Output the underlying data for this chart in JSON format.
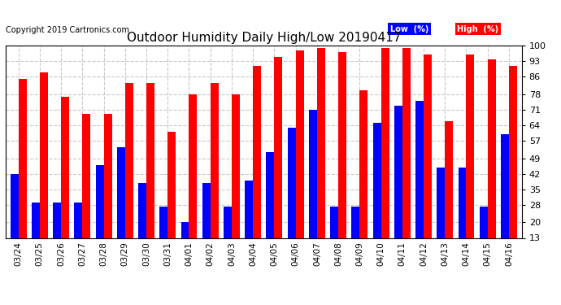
{
  "title": "Outdoor Humidity Daily High/Low 20190417",
  "copyright": "Copyright 2019 Cartronics.com",
  "categories": [
    "03/24",
    "03/25",
    "03/26",
    "03/27",
    "03/28",
    "03/29",
    "03/30",
    "03/31",
    "04/01",
    "04/02",
    "04/03",
    "04/04",
    "04/05",
    "04/06",
    "04/07",
    "04/08",
    "04/09",
    "04/10",
    "04/11",
    "04/12",
    "04/13",
    "04/14",
    "04/15",
    "04/16"
  ],
  "high": [
    85,
    88,
    77,
    69,
    69,
    83,
    83,
    61,
    78,
    83,
    78,
    91,
    95,
    98,
    99,
    97,
    80,
    99,
    99,
    96,
    66,
    96,
    94,
    91
  ],
  "low": [
    42,
    29,
    29,
    29,
    46,
    54,
    38,
    27,
    20,
    38,
    27,
    39,
    52,
    63,
    71,
    27,
    27,
    65,
    73,
    75,
    45,
    45,
    27,
    60
  ],
  "high_color": "#ff0000",
  "low_color": "#0000ff",
  "bg_color": "#ffffff",
  "grid_color": "#c8c8c8",
  "ylim": [
    13,
    100
  ],
  "yticks": [
    13,
    20,
    28,
    35,
    42,
    49,
    57,
    64,
    71,
    78,
    86,
    93,
    100
  ],
  "bar_width": 0.38,
  "legend_low_label": "Low  (%)",
  "legend_high_label": "High  (%)"
}
